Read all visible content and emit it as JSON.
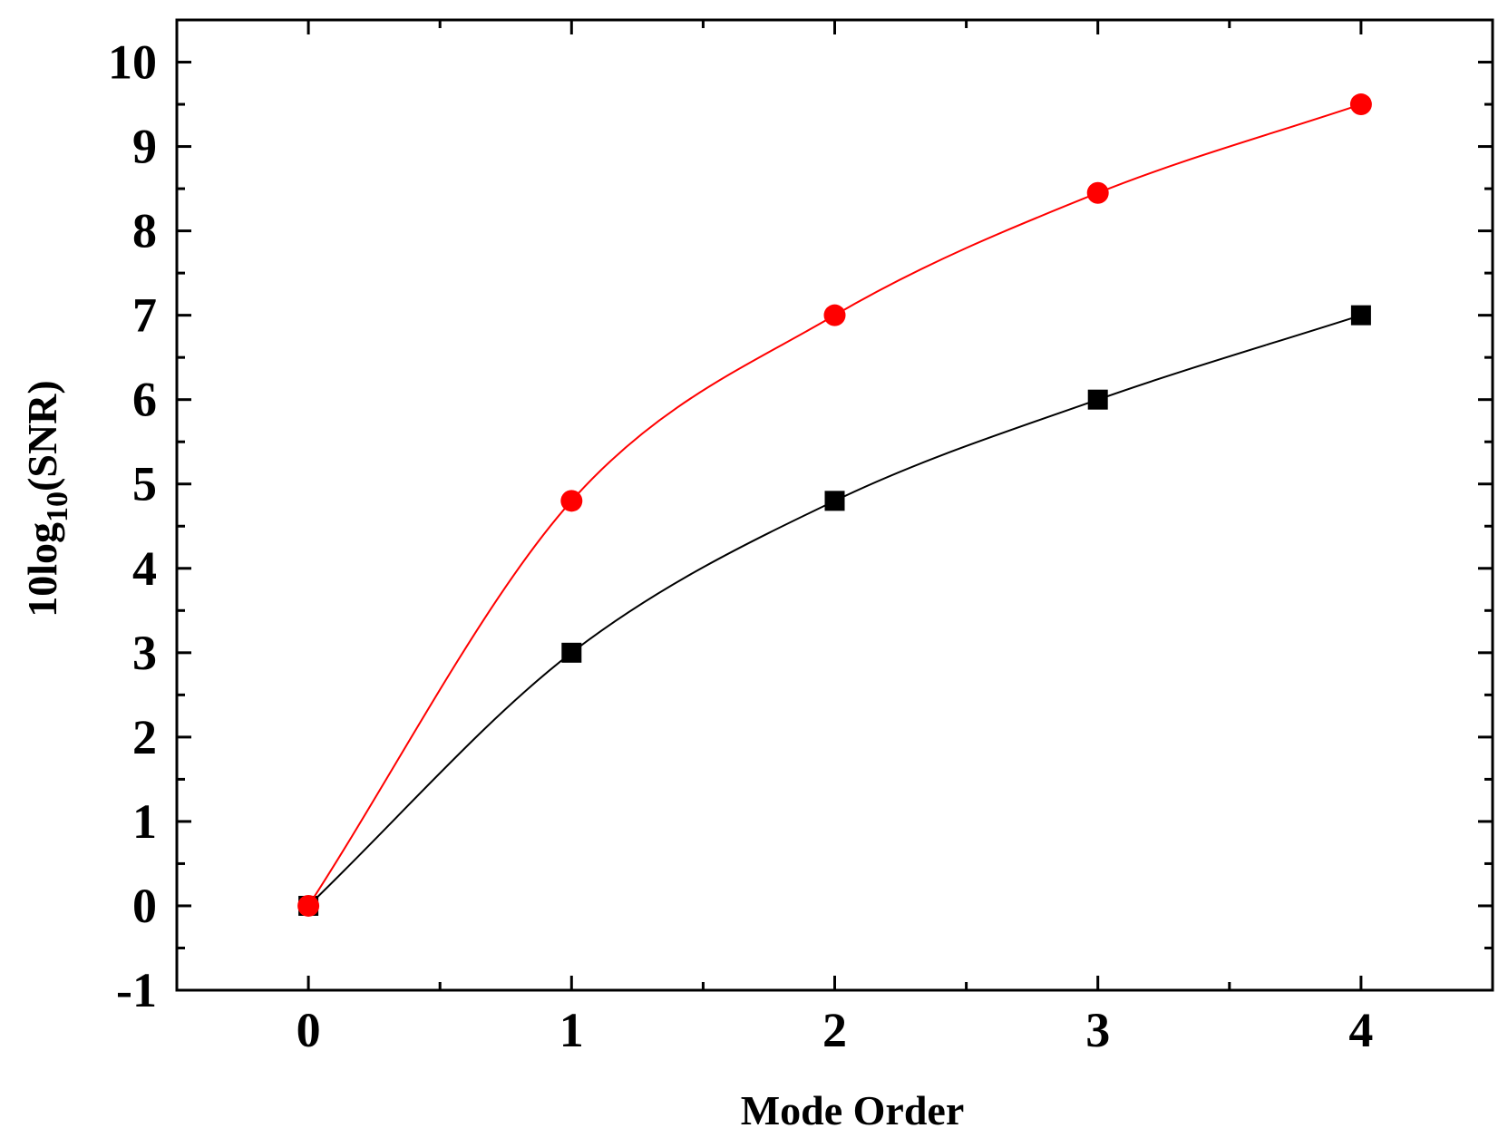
{
  "chart_data": {
    "type": "line",
    "xlabel": "Mode Order",
    "ylabel": {
      "prefix": "10log",
      "subscript": "10",
      "suffix": "(SNR)"
    },
    "xlim": [
      -0.5,
      4.5
    ],
    "ylim": [
      -1,
      10.5
    ],
    "x_ticks": [
      0,
      1,
      2,
      3,
      4
    ],
    "y_ticks": [
      -1,
      0,
      1,
      2,
      3,
      4,
      5,
      6,
      7,
      8,
      9,
      10
    ],
    "grid": false,
    "smooth": true,
    "series": [
      {
        "marker": "square",
        "color": "#000000",
        "x": [
          0,
          1,
          2,
          3,
          4
        ],
        "values": [
          0,
          3.0,
          4.8,
          6.0,
          7.0
        ]
      },
      {
        "marker": "circle",
        "color": "#ff0000",
        "x": [
          0,
          1,
          2,
          3,
          4
        ],
        "values": [
          0,
          4.8,
          7.0,
          8.45,
          9.5
        ]
      }
    ]
  }
}
